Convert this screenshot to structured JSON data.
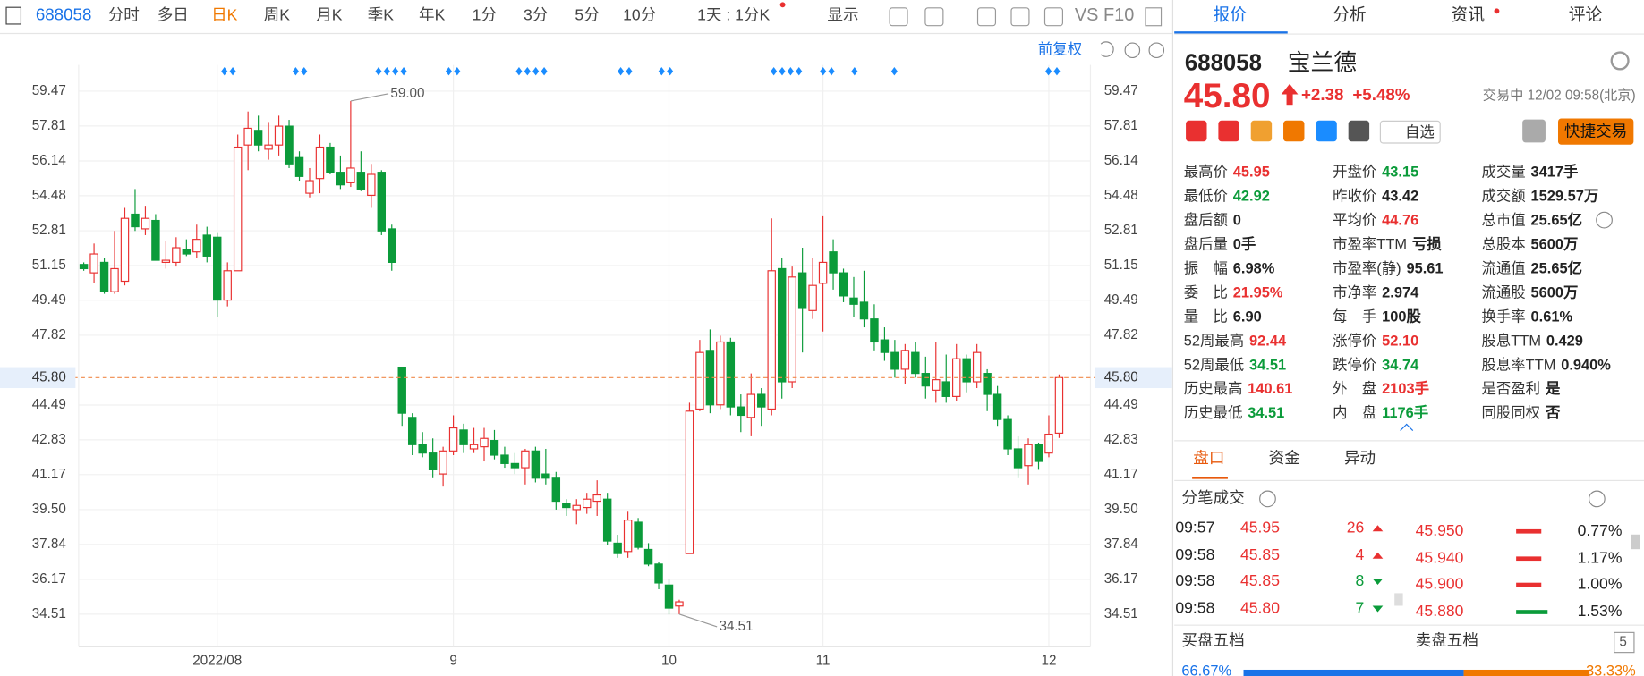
{
  "toolbar": {
    "code": "688058",
    "tabs": [
      "分时",
      "多日",
      "日K",
      "周K",
      "月K",
      "季K",
      "年K",
      "1分",
      "3分",
      "5分",
      "10分"
    ],
    "period": "1天 : 1分K",
    "display": "显示",
    "vs": "VS F10"
  },
  "chart_data": {
    "type": "candlestick",
    "corner_label": "前复权",
    "categories": [
      null,
      null,
      null,
      null,
      null,
      null,
      null,
      null,
      null,
      null,
      null,
      null,
      null,
      "2022/08",
      null,
      null,
      null,
      null,
      null,
      null,
      null,
      null,
      null,
      null,
      null,
      null,
      null,
      null,
      null,
      null,
      null,
      null,
      null,
      null,
      null,
      null,
      "9",
      null,
      null,
      null,
      null,
      null,
      null,
      null,
      null,
      null,
      null,
      null,
      null,
      null,
      null,
      null,
      null,
      null,
      null,
      null,
      null,
      "10",
      null,
      null,
      null,
      null,
      null,
      null,
      null,
      null,
      null,
      null,
      null,
      null,
      null,
      null,
      "11",
      null,
      null,
      null,
      null,
      null,
      null,
      null,
      null,
      null,
      null,
      null,
      null,
      null,
      null,
      null,
      null,
      null,
      null,
      null,
      null,
      null,
      "12",
      null
    ],
    "open": [
      51.2,
      50.8,
      51.3,
      49.9,
      50.4,
      53.6,
      52.9,
      53.3,
      51.3,
      51.3,
      51.9,
      51.8,
      52.6,
      52.5,
      49.5,
      50.9,
      56.9,
      57.6,
      56.7,
      56.9,
      57.8,
      56.3,
      54.6,
      55.3,
      56.8,
      55.6,
      55.1,
      55.6,
      54.5,
      55.6,
      52.9,
      46.3,
      43.9,
      42.6,
      42.2,
      41.2,
      42.3,
      43.3,
      42.4,
      42.5,
      42.8,
      42.1,
      41.7,
      41.5,
      42.3,
      41.2,
      41.0,
      39.8,
      39.5,
      39.6,
      39.9,
      40.0,
      37.9,
      37.5,
      38.9,
      37.6,
      36.9,
      35.9,
      34.9,
      37.4,
      44.3,
      47.1,
      44.5,
      47.5,
      44.4,
      43.9,
      45.0,
      44.3,
      51.0,
      45.6,
      50.8,
      49.0,
      50.3,
      51.8,
      50.8,
      49.6,
      49.4,
      48.6,
      47.6,
      47.0,
      46.2,
      47.0,
      46.0,
      45.2,
      45.6,
      44.9,
      46.7,
      45.6,
      46.0,
      45.0,
      43.8,
      42.4,
      41.6,
      42.6,
      42.2,
      43.15
    ],
    "high": [
      51.3,
      52.2,
      51.5,
      52.8,
      53.9,
      54.8,
      54.0,
      53.6,
      52.3,
      52.5,
      52.4,
      53.1,
      53.0,
      52.7,
      51.3,
      57.4,
      58.5,
      58.3,
      58.0,
      58.3,
      58.1,
      56.6,
      55.8,
      57.4,
      57.0,
      56.4,
      59.0,
      56.6,
      56.0,
      55.7,
      53.1,
      46.3,
      44.1,
      43.2,
      42.9,
      42.5,
      44.0,
      43.6,
      43.4,
      43.4,
      43.3,
      42.5,
      42.2,
      42.4,
      42.5,
      42.4,
      41.3,
      40.0,
      40.0,
      40.3,
      40.9,
      40.3,
      38.3,
      39.4,
      39.1,
      37.9,
      37.0,
      36.2,
      35.2,
      44.6,
      47.6,
      48.1,
      47.8,
      47.7,
      45.0,
      46.0,
      45.3,
      53.4,
      51.5,
      51.1,
      52.0,
      51.5,
      53.5,
      52.4,
      51.0,
      50.6,
      50.9,
      49.3,
      48.2,
      47.6,
      47.4,
      47.5,
      46.8,
      47.5,
      46.9,
      47.4,
      46.9,
      47.4,
      46.2,
      45.4,
      44.0,
      43.0,
      42.9,
      42.7,
      44.0,
      45.95
    ],
    "low": [
      50.9,
      50.3,
      49.8,
      49.8,
      50.2,
      52.8,
      52.6,
      51.4,
      51.0,
      51.1,
      51.6,
      51.5,
      51.3,
      48.7,
      49.2,
      50.9,
      55.7,
      56.6,
      56.2,
      56.4,
      55.8,
      55.2,
      54.4,
      54.6,
      55.5,
      54.8,
      54.9,
      54.7,
      53.9,
      52.6,
      50.9,
      43.5,
      42.1,
      42.0,
      41.0,
      40.6,
      42.1,
      42.2,
      42.2,
      41.8,
      41.9,
      41.5,
      41.2,
      40.7,
      40.8,
      40.7,
      39.5,
      39.2,
      38.8,
      39.3,
      39.2,
      37.8,
      37.2,
      37.2,
      37.6,
      36.8,
      35.7,
      34.5,
      34.51,
      37.4,
      44.2,
      44.1,
      44.3,
      44.0,
      43.2,
      43.0,
      43.5,
      44.0,
      44.8,
      45.3,
      47.0,
      48.6,
      48.0,
      50.0,
      49.4,
      48.7,
      48.2,
      47.1,
      46.6,
      45.8,
      45.5,
      45.8,
      44.8,
      44.6,
      44.6,
      44.7,
      45.1,
      45.3,
      44.2,
      43.5,
      42.1,
      41.0,
      40.7,
      41.4,
      42.0,
      42.92
    ],
    "close": [
      51.0,
      51.7,
      49.9,
      51.0,
      53.4,
      53.0,
      53.4,
      51.4,
      51.4,
      52.0,
      51.7,
      52.4,
      51.6,
      49.5,
      50.9,
      56.8,
      57.7,
      56.9,
      56.9,
      57.8,
      56.0,
      55.4,
      55.2,
      56.8,
      55.6,
      55.0,
      55.8,
      54.8,
      55.5,
      52.8,
      51.3,
      44.1,
      42.6,
      42.2,
      41.4,
      42.3,
      43.4,
      42.6,
      42.6,
      42.9,
      42.1,
      41.7,
      41.5,
      42.3,
      41.0,
      41.0,
      39.9,
      39.6,
      39.7,
      40.0,
      40.2,
      38.0,
      37.4,
      39.0,
      37.7,
      36.9,
      36.0,
      34.8,
      35.1,
      44.2,
      47.0,
      44.5,
      47.5,
      44.4,
      44.0,
      45.0,
      44.4,
      50.9,
      45.6,
      50.6,
      49.1,
      50.2,
      51.3,
      50.8,
      49.7,
      49.3,
      48.6,
      47.5,
      47.0,
      46.2,
      47.1,
      46.0,
      45.4,
      45.7,
      44.9,
      46.7,
      45.6,
      47.0,
      45.0,
      43.8,
      42.4,
      41.5,
      42.6,
      41.8,
      43.1,
      45.8
    ],
    "ylim": [
      32.96,
      60.72
    ],
    "yticks": [
      34.51,
      36.17,
      37.84,
      {
        "value": 39.5,
        "label": "39.50"
      },
      41.17,
      42.83,
      44.49,
      47.82,
      49.49,
      51.15,
      52.81,
      54.48,
      56.14,
      57.81,
      59.47
    ],
    "current_price": {
      "value": 45.8,
      "label": "45.80"
    },
    "annotations": [
      {
        "value": 59,
        "label": "59.00"
      },
      {
        "value": 34.51,
        "label": "34.51"
      }
    ],
    "up_color": "#e93030",
    "down_color": "#0b9b3a",
    "grid": true
  },
  "panel": {
    "tabs": [
      "报价",
      "分析",
      "资讯",
      "评论"
    ],
    "code": "688058",
    "name": "宝兰德",
    "price": "45.80",
    "change": "+2.38",
    "pct": "+5.48%",
    "status": "交易中 12/02 09:58(北京)",
    "favorite": "自选",
    "quick_trade": "快捷交易",
    "stats": [
      [
        {
          "label": "最高价",
          "value": "45.95",
          "tone": "up"
        },
        {
          "label": "最低价",
          "value": "42.92",
          "tone": "down"
        },
        {
          "label": "盘后额",
          "value": "0",
          "tone": "flat"
        },
        {
          "label": "盘后量",
          "value": "0手",
          "tone": "flat"
        },
        {
          "label": "振　幅",
          "value": "6.98%",
          "tone": "flat"
        },
        {
          "label": "委　比",
          "value": "21.95%",
          "tone": "up"
        },
        {
          "label": "量　比",
          "value": "6.90",
          "tone": "flat"
        },
        {
          "label": "52周最高",
          "value": "92.44",
          "tone": "up"
        },
        {
          "label": "52周最低",
          "value": "34.51",
          "tone": "down"
        },
        {
          "label": "历史最高",
          "value": "140.61",
          "tone": "up"
        },
        {
          "label": "历史最低",
          "value": "34.51",
          "tone": "down"
        }
      ],
      [
        {
          "label": "开盘价",
          "value": "43.15",
          "tone": "down"
        },
        {
          "label": "昨收价",
          "value": "43.42",
          "tone": "flat"
        },
        {
          "label": "平均价",
          "value": "44.76",
          "tone": "up"
        },
        {
          "label": "市盈率TTM",
          "value": "亏损",
          "tone": "flat"
        },
        {
          "label": "市盈率(静)",
          "value": "95.61",
          "tone": "flat"
        },
        {
          "label": "市净率",
          "value": "2.974",
          "tone": "flat"
        },
        {
          "label": "每　手",
          "value": "100股",
          "tone": "flat"
        },
        {
          "label": "涨停价",
          "value": "52.10",
          "tone": "up"
        },
        {
          "label": "跌停价",
          "value": "34.74",
          "tone": "down"
        },
        {
          "label": "外　盘",
          "value": "2103手",
          "tone": "up"
        },
        {
          "label": "内　盘",
          "value": "1176手",
          "tone": "down"
        }
      ],
      [
        {
          "label": "成交量",
          "value": "3417手",
          "tone": "flat"
        },
        {
          "label": "成交额",
          "value": "1529.57万",
          "tone": "flat"
        },
        {
          "label": "总市值",
          "value": "25.65亿",
          "tone": "flat"
        },
        {
          "label": "总股本",
          "value": "5600万",
          "tone": "flat"
        },
        {
          "label": "流通值",
          "value": "25.65亿",
          "tone": "flat"
        },
        {
          "label": "流通股",
          "value": "5600万",
          "tone": "flat"
        },
        {
          "label": "换手率",
          "value": "0.61%",
          "tone": "flat"
        },
        {
          "label": "股息TTM",
          "value": "0.429",
          "tone": "flat"
        },
        {
          "label": "股息率TTM",
          "value": "0.940%",
          "tone": "flat"
        },
        {
          "label": "是否盈利",
          "value": "是",
          "tone": "flat"
        },
        {
          "label": "同股同权",
          "value": "否",
          "tone": "flat"
        }
      ]
    ],
    "sub_tabs": [
      "盘口",
      "资金",
      "异动"
    ],
    "trades_title": "分笔成交",
    "trades": [
      {
        "time": "09:57",
        "price": "45.95",
        "volume": "26",
        "side": "up"
      },
      {
        "time": "09:58",
        "price": "45.85",
        "volume": "4",
        "side": "up"
      },
      {
        "time": "09:58",
        "price": "45.85",
        "volume": "8",
        "side": "down"
      },
      {
        "time": "09:58",
        "price": "45.80",
        "volume": "7",
        "side": "down"
      }
    ],
    "depth": [
      {
        "price": "45.950",
        "pct": "0.77%",
        "side": "up"
      },
      {
        "price": "45.940",
        "pct": "1.17%",
        "side": "up"
      },
      {
        "price": "45.900",
        "pct": "1.00%",
        "side": "up"
      },
      {
        "price": "45.880",
        "pct": "1.53%",
        "side": "down"
      }
    ],
    "buy_title": "买盘五档",
    "sell_title": "卖盘五档",
    "buy_pct": "66.67%",
    "sell_pct": "33.33%",
    "levels": "5"
  }
}
